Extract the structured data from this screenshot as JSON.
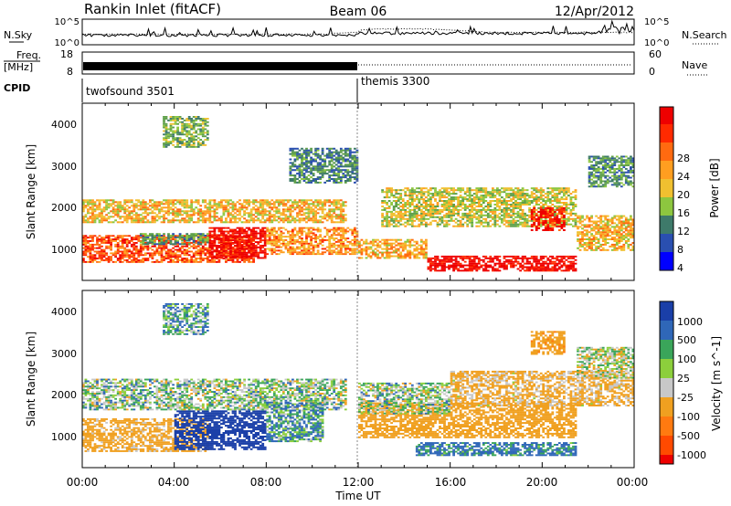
{
  "header": {
    "title": "Rankin Inlet (fitACF)",
    "beam": "Beam 06",
    "date": "12/Apr/2012"
  },
  "noise_panel": {
    "left_label": "N.Sky",
    "right_label": "N.Search",
    "left_ticks": [
      "10^5",
      "10^0"
    ],
    "right_ticks": [
      "10^5",
      "10^0"
    ]
  },
  "freq_panel": {
    "left_label_1": "Freq.",
    "left_label_2": "[MHz]",
    "left_ticks": [
      "18",
      "8"
    ],
    "right_label": "Nave",
    "right_ticks": [
      "60",
      "0"
    ]
  },
  "cpid_panel": {
    "label": "CPID",
    "modes": [
      {
        "name": "twofsound 3501",
        "start_hour": 0,
        "end_hour": 12
      },
      {
        "name": "themis 3300",
        "start_hour": 12,
        "end_hour": 24
      }
    ]
  },
  "x_axis": {
    "label": "Time UT",
    "ticks": [
      "00:00",
      "04:00",
      "08:00",
      "12:00",
      "16:00",
      "20:00",
      "00:00"
    ]
  },
  "power_panel": {
    "ylabel": "Slant Range [km]",
    "yticks": [
      "1000",
      "2000",
      "3000",
      "4000"
    ],
    "colorbar_label": "Power [dB]",
    "colorbar_ticks": [
      "28",
      "24",
      "20",
      "16",
      "12",
      "8",
      "4"
    ],
    "colors": [
      "#0000ff",
      "#2a4fb0",
      "#3e7a6a",
      "#5fa04a",
      "#8dc63f",
      "#f0c030",
      "#ff9e20",
      "#ff6a10",
      "#ff2a00",
      "#ee0000"
    ]
  },
  "velocity_panel": {
    "ylabel": "Slant Range [km]",
    "yticks": [
      "1000",
      "2000",
      "3000",
      "4000"
    ],
    "colorbar_label": "Velocity [m s^-1]",
    "colorbar_ticks": [
      "1000",
      "500",
      "100",
      "25",
      "-25",
      "-100",
      "-500",
      "-1000"
    ],
    "colors": [
      "#1a3fa8",
      "#2f67b8",
      "#3aa55a",
      "#8ccf3c",
      "#c8c8c8",
      "#f0a020",
      "#ff7a10",
      "#ff4a00",
      "#ee0000"
    ]
  },
  "chart_data": [
    {
      "type": "heatmap",
      "title": "Power",
      "xlabel": "Time UT",
      "ylabel": "Slant Range [km]",
      "xlim_hours": [
        0,
        24
      ],
      "ylim_km": [
        180,
        4600
      ],
      "colorbar": {
        "label": "Power [dB]",
        "range": [
          0,
          30
        ]
      },
      "regions": [
        {
          "t0": 0.0,
          "t1": 7.5,
          "r0": 600,
          "r1": 1300,
          "value": 24
        },
        {
          "t0": 5.5,
          "t1": 8.0,
          "r0": 700,
          "r1": 1500,
          "value": 29
        },
        {
          "t0": 0.0,
          "t1": 11.5,
          "r0": 1600,
          "r1": 2200,
          "value": 18
        },
        {
          "t0": 8.0,
          "t1": 12.0,
          "r0": 800,
          "r1": 1500,
          "value": 20
        },
        {
          "t0": 2.5,
          "t1": 5.5,
          "r0": 1050,
          "r1": 1350,
          "value": 10
        },
        {
          "t0": 12.0,
          "t1": 15.0,
          "r0": 700,
          "r1": 1200,
          "value": 19
        },
        {
          "t0": 15.0,
          "t1": 21.5,
          "r0": 380,
          "r1": 780,
          "value": 29
        },
        {
          "t0": 13.0,
          "t1": 21.5,
          "r0": 1500,
          "r1": 2500,
          "value": 15
        },
        {
          "t0": 21.5,
          "t1": 24.0,
          "r0": 900,
          "r1": 1800,
          "value": 18
        },
        {
          "t0": 19.5,
          "t1": 21.0,
          "r0": 1400,
          "r1": 2000,
          "value": 27
        },
        {
          "t0": 22.0,
          "t1": 24.0,
          "r0": 2500,
          "r1": 3300,
          "value": 9
        },
        {
          "t0": 3.5,
          "t1": 5.5,
          "r0": 3500,
          "r1": 4300,
          "value": 12
        },
        {
          "t0": 9.0,
          "t1": 12.0,
          "r0": 2600,
          "r1": 3500,
          "value": 8
        }
      ]
    },
    {
      "type": "heatmap",
      "title": "Velocity",
      "xlabel": "Time UT",
      "ylabel": "Slant Range [km]",
      "xlim_hours": [
        0,
        24
      ],
      "ylim_km": [
        180,
        4600
      ],
      "colorbar": {
        "label": "Velocity [m s^-1]",
        "range": [
          -1000,
          1000
        ]
      },
      "regions": [
        {
          "t0": 0.0,
          "t1": 5.5,
          "r0": 550,
          "r1": 1400,
          "value": -200
        },
        {
          "t0": 4.0,
          "t1": 8.0,
          "r0": 600,
          "r1": 1600,
          "value": 800
        },
        {
          "t0": 0.0,
          "t1": 11.5,
          "r0": 1600,
          "r1": 2400,
          "value": 0
        },
        {
          "t0": 8.0,
          "t1": 10.5,
          "r0": 800,
          "r1": 1800,
          "value": 80
        },
        {
          "t0": 12.0,
          "t1": 21.5,
          "r0": 900,
          "r1": 1800,
          "value": -300
        },
        {
          "t0": 14.5,
          "t1": 21.5,
          "r0": 450,
          "r1": 800,
          "value": 150
        },
        {
          "t0": 12.0,
          "t1": 16.0,
          "r0": 1500,
          "r1": 2300,
          "value": 0
        },
        {
          "t0": 16.0,
          "t1": 24.0,
          "r0": 1700,
          "r1": 2600,
          "value": -150
        },
        {
          "t0": 21.5,
          "t1": 24.0,
          "r0": 2400,
          "r1": 3200,
          "value": -40
        },
        {
          "t0": 19.5,
          "t1": 21.0,
          "r0": 3000,
          "r1": 3600,
          "value": -400
        },
        {
          "t0": 3.5,
          "t1": 5.5,
          "r0": 3500,
          "r1": 4300,
          "value": 60
        }
      ]
    }
  ]
}
